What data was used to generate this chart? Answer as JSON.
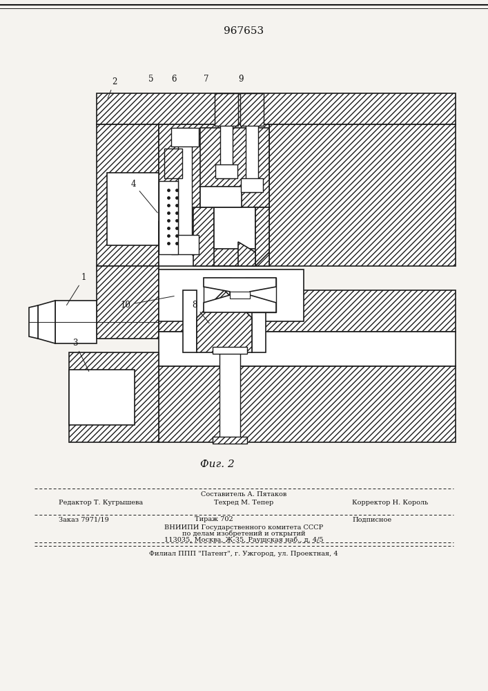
{
  "patent_number": "967653",
  "figure_label": "Фиг. 2",
  "bg_color": "#f5f3ef",
  "line_color": "#1a1a1a",
  "hatch_color": "#222222",
  "text_color": "#111111",
  "footer": {
    "line1_above": "Составитель А. Пятаков",
    "line1_left": "Редактор Т. Кугрышева",
    "line1_center": "Техред М. Тепер",
    "line1_right": "Корректор Н. Король",
    "line2_left": "Заказ 7971/19",
    "line2_center": "Тираж 702",
    "line2_right": "Подписное",
    "line3": "ВНИИПИ Государственного комитета СССР",
    "line4": "по делам изобретений и открытий",
    "line5": "113035, Москва, Ж-35, Раушская наб., д. 4/5",
    "line6": "Филиал ППП \"Патент\", г. Ужгород, ул. Проектная, 4"
  }
}
